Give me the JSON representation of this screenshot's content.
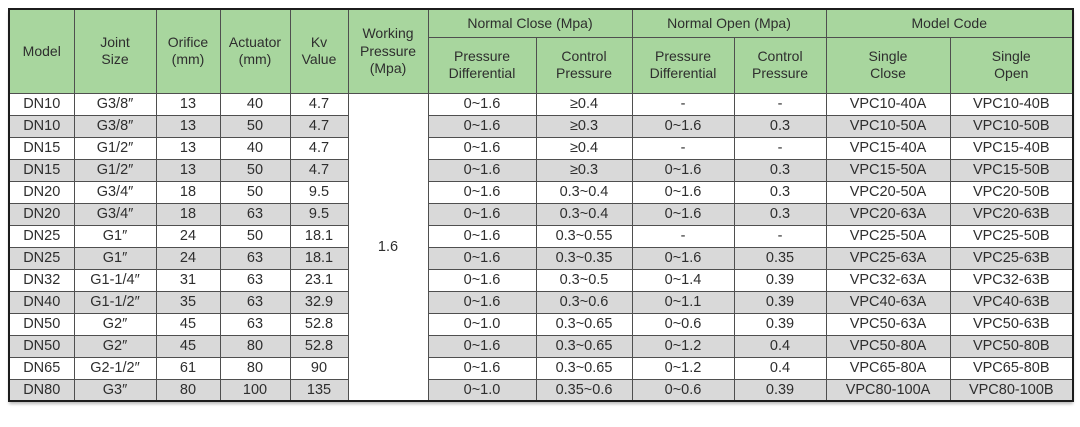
{
  "colors": {
    "header_bg": "#a8d69e",
    "stripe_bg": "#d9d9d9",
    "border": "#4f4f4f",
    "text": "#2e2e2e"
  },
  "table": {
    "header": {
      "model": "Model",
      "joint_size": "Joint\nSize",
      "orifice": "Orifice\n(mm)",
      "actuator": "Actuator\n(mm)",
      "kv_value": "Kv\nValue",
      "working_pressure": "Working\nPressure\n(Mpa)",
      "normal_close": "Normal Close (Mpa)",
      "normal_open": "Normal Open (Mpa)",
      "model_code": "Model Code",
      "pressure_differential": "Pressure\nDifferential",
      "control_pressure": "Control\nPressure",
      "single_close": "Single\nClose",
      "single_open": "Single\nOpen"
    },
    "working_pressure_value": "1.6",
    "rows": [
      {
        "model": "DN10",
        "joint_size": "G3/8″",
        "orifice": "13",
        "actuator": "40",
        "kv": "4.7",
        "nc_pressure_differential": "0~1.6",
        "nc_control_pressure": "≥0.4",
        "no_pressure_differential": "-",
        "no_control_pressure": "-",
        "model_code_single_close": "VPC10-40A",
        "model_code_single_open": "VPC10-40B"
      },
      {
        "model": "DN10",
        "joint_size": "G3/8″",
        "orifice": "13",
        "actuator": "50",
        "kv": "4.7",
        "nc_pressure_differential": "0~1.6",
        "nc_control_pressure": "≥0.3",
        "no_pressure_differential": "0~1.6",
        "no_control_pressure": "0.3",
        "model_code_single_close": "VPC10-50A",
        "model_code_single_open": "VPC10-50B"
      },
      {
        "model": "DN15",
        "joint_size": "G1/2″",
        "orifice": "13",
        "actuator": "40",
        "kv": "4.7",
        "nc_pressure_differential": "0~1.6",
        "nc_control_pressure": "≥0.4",
        "no_pressure_differential": "-",
        "no_control_pressure": "-",
        "model_code_single_close": "VPC15-40A",
        "model_code_single_open": "VPC15-40B"
      },
      {
        "model": "DN15",
        "joint_size": "G1/2″",
        "orifice": "13",
        "actuator": "50",
        "kv": "4.7",
        "nc_pressure_differential": "0~1.6",
        "nc_control_pressure": "≥0.3",
        "no_pressure_differential": "0~1.6",
        "no_control_pressure": "0.3",
        "model_code_single_close": "VPC15-50A",
        "model_code_single_open": "VPC15-50B"
      },
      {
        "model": "DN20",
        "joint_size": "G3/4″",
        "orifice": "18",
        "actuator": "50",
        "kv": "9.5",
        "nc_pressure_differential": "0~1.6",
        "nc_control_pressure": "0.3~0.4",
        "no_pressure_differential": "0~1.6",
        "no_control_pressure": "0.3",
        "model_code_single_close": "VPC20-50A",
        "model_code_single_open": "VPC20-50B"
      },
      {
        "model": "DN20",
        "joint_size": "G3/4″",
        "orifice": "18",
        "actuator": "63",
        "kv": "9.5",
        "nc_pressure_differential": "0~1.6",
        "nc_control_pressure": "0.3~0.4",
        "no_pressure_differential": "0~1.6",
        "no_control_pressure": "0.3",
        "model_code_single_close": "VPC20-63A",
        "model_code_single_open": "VPC20-63B"
      },
      {
        "model": "DN25",
        "joint_size": "G1″",
        "orifice": "24",
        "actuator": "50",
        "kv": "18.1",
        "nc_pressure_differential": "0~1.6",
        "nc_control_pressure": "0.3~0.55",
        "no_pressure_differential": "-",
        "no_control_pressure": "-",
        "model_code_single_close": "VPC25-50A",
        "model_code_single_open": "VPC25-50B"
      },
      {
        "model": "DN25",
        "joint_size": "G1″",
        "orifice": "24",
        "actuator": "63",
        "kv": "18.1",
        "nc_pressure_differential": "0~1.6",
        "nc_control_pressure": "0.3~0.35",
        "no_pressure_differential": "0~1.6",
        "no_control_pressure": "0.35",
        "model_code_single_close": "VPC25-63A",
        "model_code_single_open": "VPC25-63B"
      },
      {
        "model": "DN32",
        "joint_size": "G1-1/4″",
        "orifice": "31",
        "actuator": "63",
        "kv": "23.1",
        "nc_pressure_differential": "0~1.6",
        "nc_control_pressure": "0.3~0.5",
        "no_pressure_differential": "0~1.4",
        "no_control_pressure": "0.39",
        "model_code_single_close": "VPC32-63A",
        "model_code_single_open": "VPC32-63B"
      },
      {
        "model": "DN40",
        "joint_size": "G1-1/2″",
        "orifice": "35",
        "actuator": "63",
        "kv": "32.9",
        "nc_pressure_differential": "0~1.6",
        "nc_control_pressure": "0.3~0.6",
        "no_pressure_differential": "0~1.1",
        "no_control_pressure": "0.39",
        "model_code_single_close": "VPC40-63A",
        "model_code_single_open": "VPC40-63B"
      },
      {
        "model": "DN50",
        "joint_size": "G2″",
        "orifice": "45",
        "actuator": "63",
        "kv": "52.8",
        "nc_pressure_differential": "0~1.0",
        "nc_control_pressure": "0.3~0.65",
        "no_pressure_differential": "0~0.6",
        "no_control_pressure": "0.39",
        "model_code_single_close": "VPC50-63A",
        "model_code_single_open": "VPC50-63B"
      },
      {
        "model": "DN50",
        "joint_size": "G2″",
        "orifice": "45",
        "actuator": "80",
        "kv": "52.8",
        "nc_pressure_differential": "0~1.6",
        "nc_control_pressure": "0.3~0.65",
        "no_pressure_differential": "0~1.2",
        "no_control_pressure": "0.4",
        "model_code_single_close": "VPC50-80A",
        "model_code_single_open": "VPC50-80B"
      },
      {
        "model": "DN65",
        "joint_size": "G2-1/2″",
        "orifice": "61",
        "actuator": "80",
        "kv": "90",
        "nc_pressure_differential": "0~1.6",
        "nc_control_pressure": "0.3~0.65",
        "no_pressure_differential": "0~1.2",
        "no_control_pressure": "0.4",
        "model_code_single_close": "VPC65-80A",
        "model_code_single_open": "VPC65-80B"
      },
      {
        "model": "DN80",
        "joint_size": "G3″",
        "orifice": "80",
        "actuator": "100",
        "kv": "135",
        "nc_pressure_differential": "0~1.0",
        "nc_control_pressure": "0.35~0.6",
        "no_pressure_differential": "0~0.6",
        "no_control_pressure": "0.39",
        "model_code_single_close": "VPC80-100A",
        "model_code_single_open": "VPC80-100B"
      }
    ]
  }
}
